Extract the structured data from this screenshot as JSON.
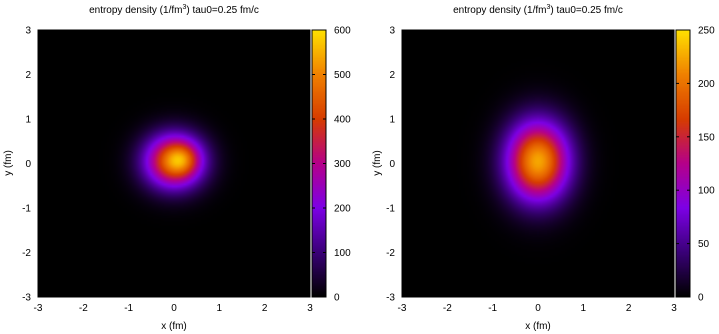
{
  "chart_data": [
    {
      "type": "heatmap",
      "title": {
        "prefix": "entropy density (1/fm",
        "sup": "3",
        "suffix": ")  tau0=0.25 fm/c"
      },
      "xlabel": "x (fm)",
      "ylabel": "y (fm)",
      "xlim": [
        -3,
        3
      ],
      "ylim": [
        -3,
        3
      ],
      "x_ticks": [
        -3,
        -2,
        -1,
        0,
        1,
        2,
        3
      ],
      "y_ticks": [
        -3,
        -2,
        -1,
        0,
        1,
        2,
        3
      ],
      "colorbar": {
        "min": 0,
        "max": 600,
        "ticks": [
          0,
          100,
          200,
          300,
          400,
          500,
          600
        ]
      },
      "colormap": [
        "#000000",
        "#3a0078",
        "#7d00e6",
        "#b5008a",
        "#d63c00",
        "#f08000",
        "#ffe000"
      ],
      "blob": {
        "center_x": 0.0,
        "center_y": 0.05,
        "sigma_x": 0.45,
        "sigma_y": 0.42,
        "peak": 480,
        "secondary": {
          "center_x": 0.2,
          "center_y": 0.1,
          "sigma_x": 0.25,
          "sigma_y": 0.25,
          "peak": 120
        }
      }
    },
    {
      "type": "heatmap",
      "title": {
        "prefix": "entropy density (1/fm",
        "sup": "3",
        "suffix": ")  tau0=0.25 fm/c"
      },
      "xlabel": "x (fm)",
      "ylabel": "y (fm)",
      "xlim": [
        -3,
        3
      ],
      "ylim": [
        -3,
        3
      ],
      "x_ticks": [
        -3,
        -2,
        -1,
        0,
        1,
        2,
        3
      ],
      "y_ticks": [
        -3,
        -2,
        -1,
        0,
        1,
        2,
        3
      ],
      "colorbar": {
        "min": 0,
        "max": 250,
        "ticks": [
          0,
          50,
          100,
          150,
          200,
          250
        ]
      },
      "colormap": [
        "#000000",
        "#3a0078",
        "#7d00e6",
        "#b5008a",
        "#d63c00",
        "#f08000",
        "#ffe000"
      ],
      "blob": {
        "center_x": 0.0,
        "center_y": 0.05,
        "sigma_x": 0.48,
        "sigma_y": 0.62,
        "peak": 225,
        "secondary": null
      }
    }
  ]
}
